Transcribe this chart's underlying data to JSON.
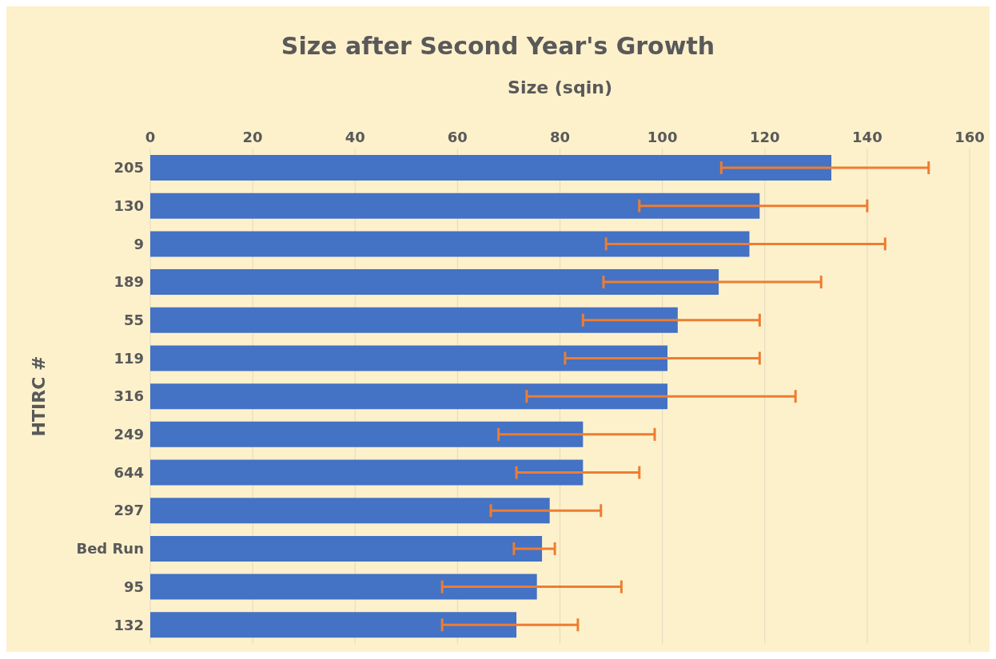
{
  "chart_data": {
    "type": "bar",
    "orientation": "horizontal",
    "title": "Size after Second Year's Growth",
    "xlabel": "Size  (sqin)",
    "ylabel": "HTIRC #",
    "categories": [
      "205",
      "130",
      "9",
      "189",
      "55",
      "119",
      "316",
      "249",
      "644",
      "297",
      "Bed Run",
      "95",
      "132"
    ],
    "values": [
      133,
      119,
      117,
      111,
      103,
      101,
      101,
      84.5,
      84.5,
      78,
      76.5,
      75.5,
      71.5
    ],
    "errors": [
      [
        111.5,
        152
      ],
      [
        95.5,
        140
      ],
      [
        89,
        143.5
      ],
      [
        88.5,
        131
      ],
      [
        84.5,
        119
      ],
      [
        81,
        119
      ],
      [
        73.5,
        126
      ],
      [
        68,
        98.5
      ],
      [
        71.5,
        95.5
      ],
      [
        66.5,
        88
      ],
      [
        71,
        79
      ],
      [
        57,
        92
      ],
      [
        57,
        83.5
      ]
    ],
    "color": "#4472c4",
    "xlim": [
      0,
      160
    ],
    "xticks": [
      0,
      20,
      40,
      60,
      80,
      100,
      120,
      140,
      160
    ],
    "grid": "x"
  }
}
